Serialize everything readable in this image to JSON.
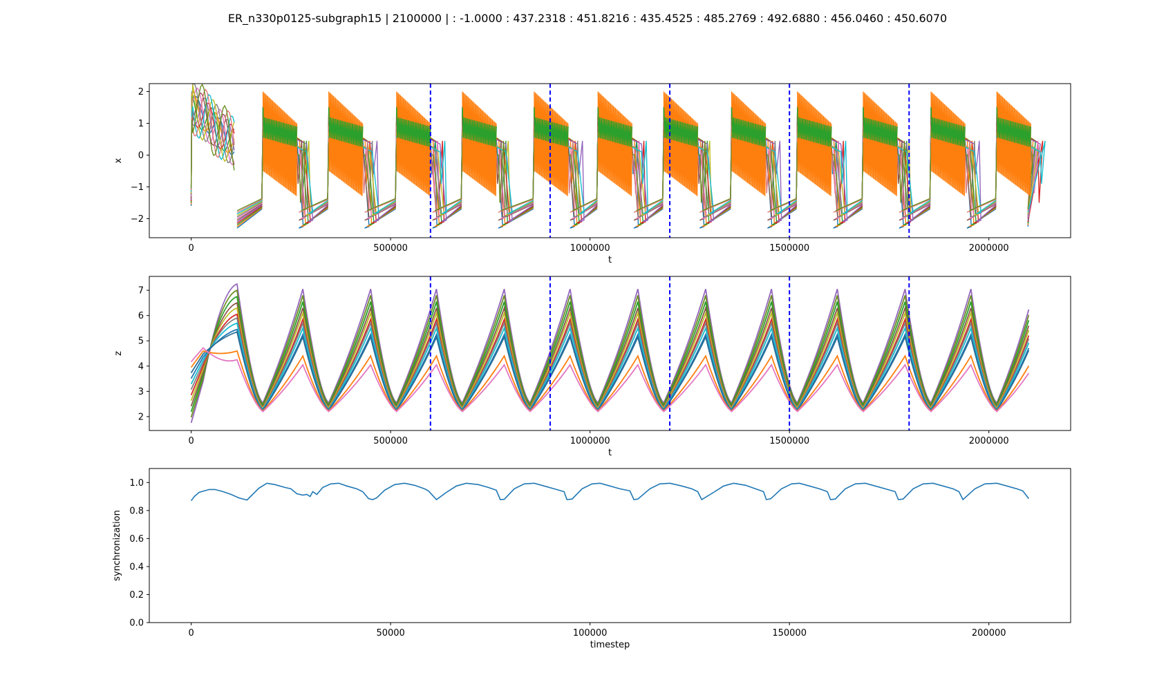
{
  "figure": {
    "title": "ER_n330p0125-subgraph15 | 2100000 |  : -1.0000 : 437.2318 : 451.8216 : 435.4525 : 485.2769 : 492.6880 : 456.0460 : 450.6070"
  },
  "chart_data": [
    {
      "type": "line",
      "xlabel": "t",
      "ylabel": "x",
      "xlim": [
        -105000,
        2205000
      ],
      "ylim": [
        -2.6,
        2.25
      ],
      "xticks": [
        0,
        500000,
        1000000,
        1500000,
        2000000
      ],
      "xtick_labels": [
        "0",
        "500000",
        "1000000",
        "1500000",
        "2000000"
      ],
      "yticks": [
        -2,
        -1,
        0,
        1,
        2
      ],
      "ytick_labels": [
        "−2",
        "−1",
        "0",
        "1",
        "2"
      ],
      "vlines": [
        600000,
        900000,
        1200000,
        1500000,
        1800000
      ],
      "vline_color": "#0000ff",
      "burst_onsets": [
        0,
        180000,
        345000,
        515000,
        680000,
        860000,
        1020000,
        1185000,
        1355000,
        1520000,
        1685000,
        1855000,
        2020000
      ],
      "series_colors": [
        "#1f77b4",
        "#ff7f0e",
        "#2ca02c",
        "#d62728",
        "#9467bd",
        "#8c564b",
        "#e377c2",
        "#7f7f7f",
        "#bcbd22",
        "#17becf",
        "#e07b7b",
        "#6b8e23"
      ],
      "grid": false
    },
    {
      "type": "line",
      "xlabel": "t",
      "ylabel": "z",
      "xlim": [
        -105000,
        2205000
      ],
      "ylim": [
        1.45,
        7.55
      ],
      "xticks": [
        0,
        500000,
        1000000,
        1500000,
        2000000
      ],
      "xtick_labels": [
        "0",
        "500000",
        "1000000",
        "1500000",
        "2000000"
      ],
      "yticks": [
        2,
        3,
        4,
        5,
        6,
        7
      ],
      "ytick_labels": [
        "2",
        "3",
        "4",
        "5",
        "6",
        "7"
      ],
      "vlines": [
        600000,
        900000,
        1200000,
        1500000,
        1800000
      ],
      "vline_color": "#0000ff",
      "peaks": [
        115000,
        280000,
        450000,
        615000,
        785000,
        950000,
        1120000,
        1290000,
        1455000,
        1620000,
        1790000,
        1955000
      ],
      "troughs": [
        180000,
        345000,
        515000,
        680000,
        850000,
        1020000,
        1185000,
        1355000,
        1520000,
        1685000,
        1855000,
        2020000
      ],
      "peak_levels": [
        7.05,
        6.8,
        6.55,
        6.3,
        6.1,
        5.85,
        5.7,
        5.5,
        5.25,
        5.15,
        4.4,
        4.05
      ],
      "trough_levels": [
        2.55,
        2.5,
        2.45,
        2.4,
        2.35,
        2.3,
        2.3,
        2.28,
        2.26,
        2.24,
        2.22,
        2.2
      ],
      "series_colors": [
        "#9467bd",
        "#6b8e23",
        "#2ca02c",
        "#8c564b",
        "#bcbd22",
        "#d62728",
        "#7f7f7f",
        "#17becf",
        "#1f77b4",
        "#2a6f97",
        "#ff7f0e",
        "#e377c2"
      ],
      "grid": false
    },
    {
      "type": "line",
      "xlabel": "timestep",
      "ylabel": "synchronization",
      "xlim": [
        -10500,
        220500
      ],
      "ylim": [
        0.0,
        1.1
      ],
      "xticks": [
        0,
        50000,
        100000,
        150000,
        200000
      ],
      "xtick_labels": [
        "0",
        "50000",
        "100000",
        "150000",
        "200000"
      ],
      "yticks": [
        0.0,
        0.2,
        0.4,
        0.6,
        0.8,
        1.0
      ],
      "ytick_labels": [
        "0.0",
        "0.2",
        "0.4",
        "0.6",
        "0.8",
        "1.0"
      ],
      "series": [
        {
          "color": "#1f77b4",
          "x": [
            0,
            800,
            2000,
            4500,
            6000,
            8000,
            10000,
            12000,
            14000,
            17000,
            19000,
            21000,
            23500,
            25000,
            26500,
            28000,
            29000,
            29800,
            30500,
            31500,
            33000,
            35000,
            37000,
            39000,
            41500,
            43000,
            44500,
            45500,
            46500,
            48500,
            51000,
            53500,
            56000,
            58500,
            59500,
            61500,
            64000,
            66500,
            69000,
            72000,
            74500,
            76500,
            77500,
            78500,
            81000,
            83500,
            86000,
            88500,
            91000,
            93500,
            94200,
            95500,
            98000,
            100500,
            102500,
            105000,
            107500,
            110000,
            111000,
            112000,
            115000,
            117500,
            120000,
            123000,
            125500,
            127000,
            128000,
            131000,
            133500,
            136000,
            139000,
            141500,
            143500,
            144200,
            145300,
            148000,
            150500,
            152500,
            155000,
            157500,
            159500,
            160300,
            161500,
            164000,
            166500,
            169000,
            171500,
            174000,
            176500,
            177300,
            178500,
            181000,
            183500,
            186000,
            188500,
            191000,
            192500,
            193500,
            196500,
            199000,
            202000,
            204500,
            207000,
            208500,
            210000
          ],
          "values": [
            0.87,
            0.9,
            0.93,
            0.95,
            0.95,
            0.935,
            0.915,
            0.89,
            0.875,
            0.96,
            0.995,
            0.985,
            0.965,
            0.955,
            0.92,
            0.91,
            0.915,
            0.9,
            0.935,
            0.915,
            0.965,
            0.99,
            0.995,
            0.975,
            0.955,
            0.935,
            0.885,
            0.878,
            0.89,
            0.945,
            0.985,
            0.995,
            0.98,
            0.955,
            0.94,
            0.878,
            0.93,
            0.975,
            0.995,
            0.985,
            0.965,
            0.945,
            0.878,
            0.88,
            0.955,
            0.99,
            0.995,
            0.975,
            0.955,
            0.935,
            0.878,
            0.882,
            0.955,
            0.99,
            0.995,
            0.975,
            0.955,
            0.94,
            0.878,
            0.882,
            0.955,
            0.99,
            0.995,
            0.975,
            0.955,
            0.935,
            0.878,
            0.93,
            0.975,
            0.995,
            0.98,
            0.955,
            0.935,
            0.878,
            0.884,
            0.955,
            0.99,
            0.995,
            0.975,
            0.955,
            0.935,
            0.878,
            0.882,
            0.955,
            0.99,
            0.995,
            0.975,
            0.955,
            0.935,
            0.878,
            0.882,
            0.955,
            0.99,
            0.995,
            0.975,
            0.955,
            0.935,
            0.878,
            0.955,
            0.99,
            0.995,
            0.975,
            0.955,
            0.94,
            0.885
          ]
        }
      ],
      "grid": false
    }
  ]
}
